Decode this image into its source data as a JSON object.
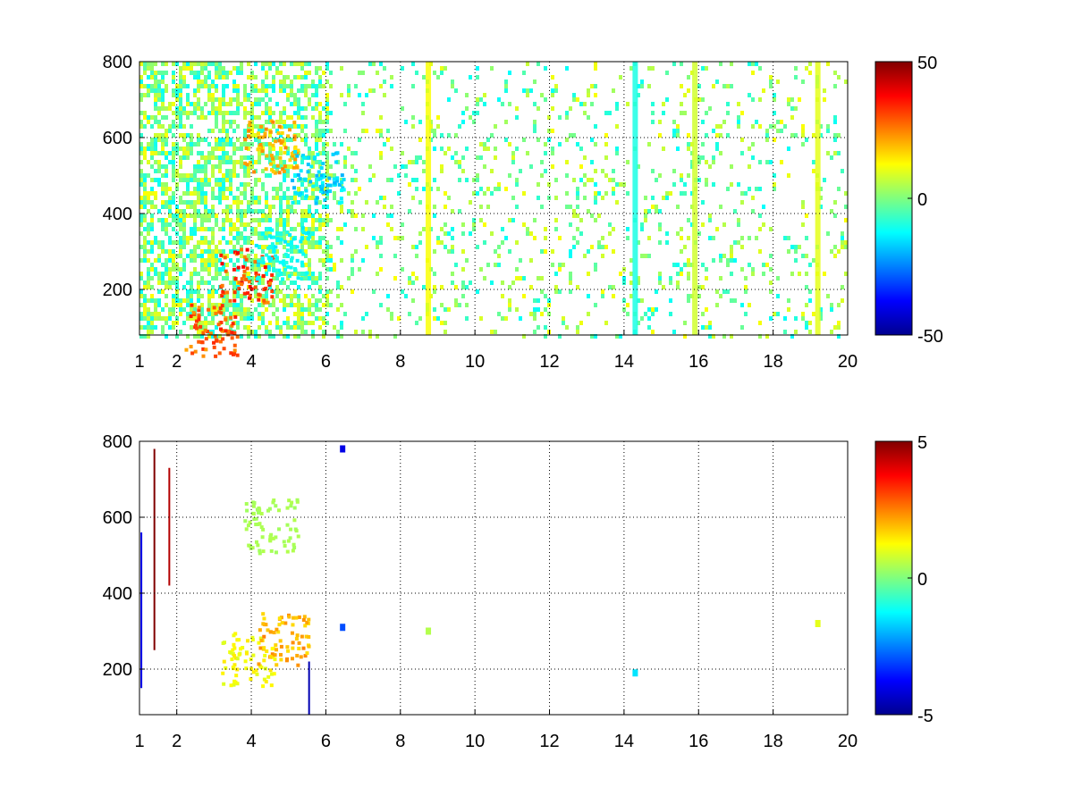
{
  "chart_data": [
    {
      "type": "heatmap",
      "title": "",
      "xlabel": "",
      "ylabel": "",
      "xlim": [
        1,
        20
      ],
      "ylim": [
        80,
        800
      ],
      "xticks": [
        1,
        2,
        4,
        6,
        8,
        10,
        12,
        14,
        16,
        18,
        20
      ],
      "xtick_labels": [
        "1",
        "2",
        "4",
        "6",
        "8",
        "10",
        "12",
        "14",
        "16",
        "18",
        "20"
      ],
      "yticks": [
        200,
        400,
        600,
        800
      ],
      "ytick_labels": [
        "200",
        "400",
        "600",
        "800"
      ],
      "grid": true,
      "colormap": "jet",
      "clim": [
        -50,
        50
      ],
      "colorbar_ticks": [
        50,
        0,
        -50
      ],
      "colorbar_tick_labels": [
        "50",
        "0",
        "-50"
      ],
      "features": [
        {
          "kind": "blob",
          "x": 3.85,
          "y": 240,
          "value": 40
        },
        {
          "kind": "blob",
          "x": 4.5,
          "y": 580,
          "value": 25
        },
        {
          "kind": "blob",
          "x": 5.75,
          "y": 500,
          "value": -20
        },
        {
          "kind": "blob",
          "x": 4.8,
          "y": 300,
          "value": -15
        },
        {
          "kind": "blob",
          "x": 2.9,
          "y": 95,
          "value": 35
        },
        {
          "kind": "column",
          "x": 14.3,
          "value": -10
        },
        {
          "kind": "column",
          "x": 19.2,
          "value": 10
        },
        {
          "kind": "column",
          "x": 15.9,
          "value": 8
        },
        {
          "kind": "column",
          "x": 8.75,
          "value": 12
        }
      ]
    },
    {
      "type": "heatmap",
      "title": "",
      "xlabel": "",
      "ylabel": "",
      "xlim": [
        1,
        20
      ],
      "ylim": [
        80,
        800
      ],
      "xticks": [
        1,
        2,
        4,
        6,
        8,
        10,
        12,
        14,
        16,
        18,
        20
      ],
      "xtick_labels": [
        "1",
        "2",
        "4",
        "6",
        "8",
        "10",
        "12",
        "14",
        "16",
        "18",
        "20"
      ],
      "yticks": [
        200,
        400,
        600,
        800
      ],
      "ytick_labels": [
        "200",
        "400",
        "600",
        "800"
      ],
      "grid": true,
      "colormap": "jet",
      "clim": [
        -5,
        5
      ],
      "colorbar_ticks": [
        5,
        0,
        -5
      ],
      "colorbar_tick_labels": [
        "5",
        "0",
        "-5"
      ],
      "features": [
        {
          "kind": "blob",
          "x": 4.5,
          "y": 580,
          "value": 0.5
        },
        {
          "kind": "blob",
          "x": 3.9,
          "y": 230,
          "value": 1.5
        },
        {
          "kind": "blob",
          "x": 4.85,
          "y": 280,
          "value": 2.5
        },
        {
          "kind": "line",
          "x": 1.4,
          "y0": 250,
          "y1": 780,
          "value": 5
        },
        {
          "kind": "line",
          "x": 1.8,
          "y0": 420,
          "y1": 730,
          "value": 4.5
        },
        {
          "kind": "line",
          "x": 1.05,
          "y0": 150,
          "y1": 560,
          "value": -4
        },
        {
          "kind": "line",
          "x": 5.55,
          "y0": 80,
          "y1": 220,
          "value": -4.5
        },
        {
          "kind": "spot",
          "x": 14.3,
          "y": 190,
          "value": -1.5
        },
        {
          "kind": "spot",
          "x": 19.2,
          "y": 320,
          "value": 1
        },
        {
          "kind": "spot",
          "x": 6.45,
          "y": 310,
          "value": -3
        },
        {
          "kind": "spot",
          "x": 6.45,
          "y": 780,
          "value": -4
        },
        {
          "kind": "spot",
          "x": 8.75,
          "y": 300,
          "value": 0.5
        }
      ]
    }
  ]
}
